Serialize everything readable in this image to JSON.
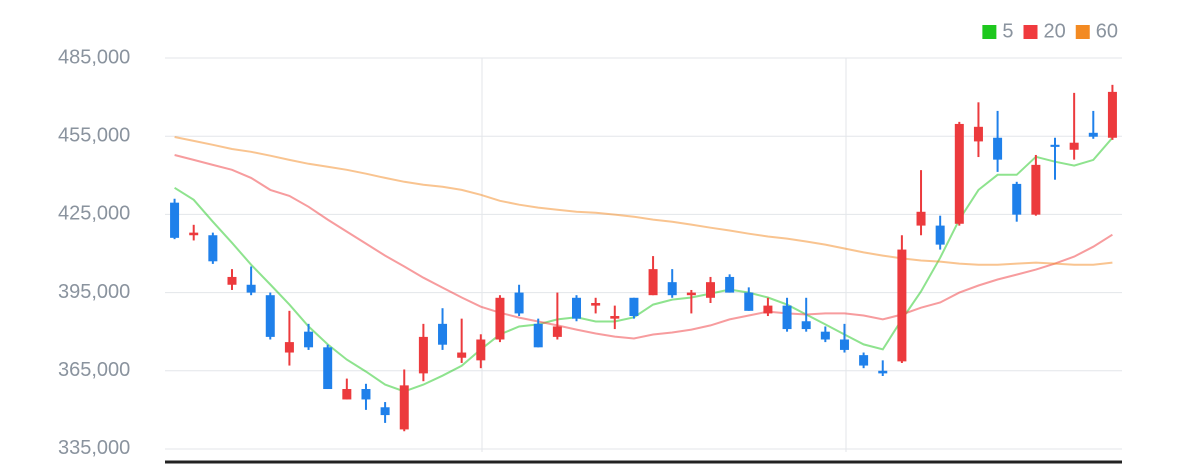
{
  "chart_data": {
    "type": "candlestick",
    "up_color": "#ec3a3d",
    "down_color": "#1f80ea",
    "open": [
      429500,
      417000,
      417000,
      398000,
      398000,
      394000,
      372000,
      380000,
      374000,
      354000,
      358000,
      351000,
      342500,
      364000,
      383000,
      370000,
      369000,
      377000,
      395000,
      383000,
      378000,
      393000,
      390000,
      385000,
      393000,
      394000,
      399000,
      394000,
      393000,
      401000,
      395000,
      387000,
      390000,
      384000,
      380000,
      377000,
      371000,
      365000,
      368600,
      420700,
      420700,
      421400,
      453000,
      454400,
      436700,
      424900,
      451700,
      449800,
      456300,
      454400
    ],
    "high": [
      431000,
      421000,
      418000,
      404000,
      405000,
      395000,
      388000,
      383000,
      375000,
      362000,
      360000,
      353000,
      365500,
      383000,
      389000,
      385000,
      379000,
      394000,
      398000,
      385000,
      395000,
      394000,
      393000,
      390000,
      393000,
      409000,
      404000,
      396000,
      401000,
      402000,
      397000,
      393000,
      393000,
      393000,
      382000,
      383000,
      372000,
      369000,
      417000,
      442000,
      424500,
      460500,
      468000,
      464700,
      437500,
      447800,
      454400,
      471600,
      464700,
      474700
    ],
    "low": [
      415500,
      415000,
      406000,
      396000,
      394000,
      377000,
      367000,
      373000,
      358000,
      354000,
      350000,
      345000,
      341800,
      361000,
      373000,
      368000,
      366000,
      376000,
      386000,
      374000,
      377000,
      384000,
      387000,
      381000,
      385000,
      394000,
      393000,
      387000,
      391000,
      395000,
      388000,
      386000,
      380000,
      380000,
      376000,
      372000,
      366000,
      363000,
      368000,
      417000,
      411500,
      420700,
      447000,
      441300,
      422200,
      424500,
      438300,
      446000,
      454000,
      453600
    ],
    "close": [
      416000,
      418000,
      407000,
      401000,
      395000,
      378000,
      376000,
      374000,
      358000,
      358000,
      354000,
      348000,
      359400,
      378000,
      375000,
      372000,
      377000,
      393000,
      387000,
      374000,
      382000,
      385000,
      391000,
      386000,
      386000,
      404000,
      394000,
      395000,
      399000,
      395000,
      388000,
      390000,
      381000,
      381000,
      377000,
      373000,
      367000,
      364000,
      411500,
      426000,
      413400,
      459700,
      458600,
      446000,
      424900,
      444000,
      450900,
      452500,
      454800,
      472000
    ],
    "series": [
      {
        "name": "5",
        "color": "#1ec81e",
        "values": [
          435200,
          430600,
          422200,
          414100,
          405700,
          398100,
          390400,
          382000,
          375100,
          369300,
          364700,
          359700,
          357100,
          359700,
          363100,
          366900,
          373200,
          378900,
          382000,
          382800,
          384700,
          385500,
          383900,
          383900,
          385500,
          390400,
          392300,
          393100,
          394600,
          396200,
          395000,
          393100,
          390400,
          386600,
          382800,
          378900,
          375100,
          373200,
          384700,
          395400,
          408400,
          423000,
          434400,
          440200,
          440200,
          447100,
          445200,
          443700,
          445900,
          454400
        ]
      },
      {
        "name": "20",
        "color": "#f03a3e",
        "values": [
          447800,
          445900,
          444000,
          442100,
          439000,
          434400,
          432100,
          427900,
          423000,
          418400,
          413800,
          409200,
          405000,
          400700,
          396900,
          393100,
          389600,
          387300,
          385400,
          383900,
          382400,
          380800,
          379300,
          378100,
          377400,
          378900,
          379700,
          380800,
          382400,
          384700,
          386200,
          387700,
          387000,
          386600,
          387000,
          387000,
          386200,
          384700,
          386600,
          389200,
          391200,
          395000,
          397700,
          400000,
          401900,
          403800,
          406100,
          408800,
          412600,
          417200
        ]
      },
      {
        "name": "60",
        "color": "#f38a22",
        "values": [
          454700,
          453200,
          451700,
          450100,
          449000,
          447500,
          445900,
          444400,
          443300,
          442100,
          440600,
          439000,
          437500,
          436400,
          435600,
          434400,
          432500,
          430200,
          428700,
          427600,
          426800,
          426000,
          425600,
          424900,
          424100,
          423000,
          422200,
          421100,
          419900,
          418800,
          417600,
          416500,
          415700,
          414600,
          413400,
          411900,
          410400,
          409200,
          408100,
          407300,
          406900,
          406100,
          405700,
          405700,
          406100,
          406500,
          406100,
          405700,
          405700,
          406500
        ]
      }
    ],
    "ylim": [
      330000,
      485000
    ],
    "yticks": [
      {
        "value": 335000,
        "label": "335,000"
      },
      {
        "value": 365000,
        "label": "365,000"
      },
      {
        "value": 395000,
        "label": "395,000"
      },
      {
        "value": 425000,
        "label": "425,000"
      },
      {
        "value": 455000,
        "label": "455,000"
      },
      {
        "value": 485000,
        "label": "485,000"
      }
    ],
    "grid": true
  }
}
